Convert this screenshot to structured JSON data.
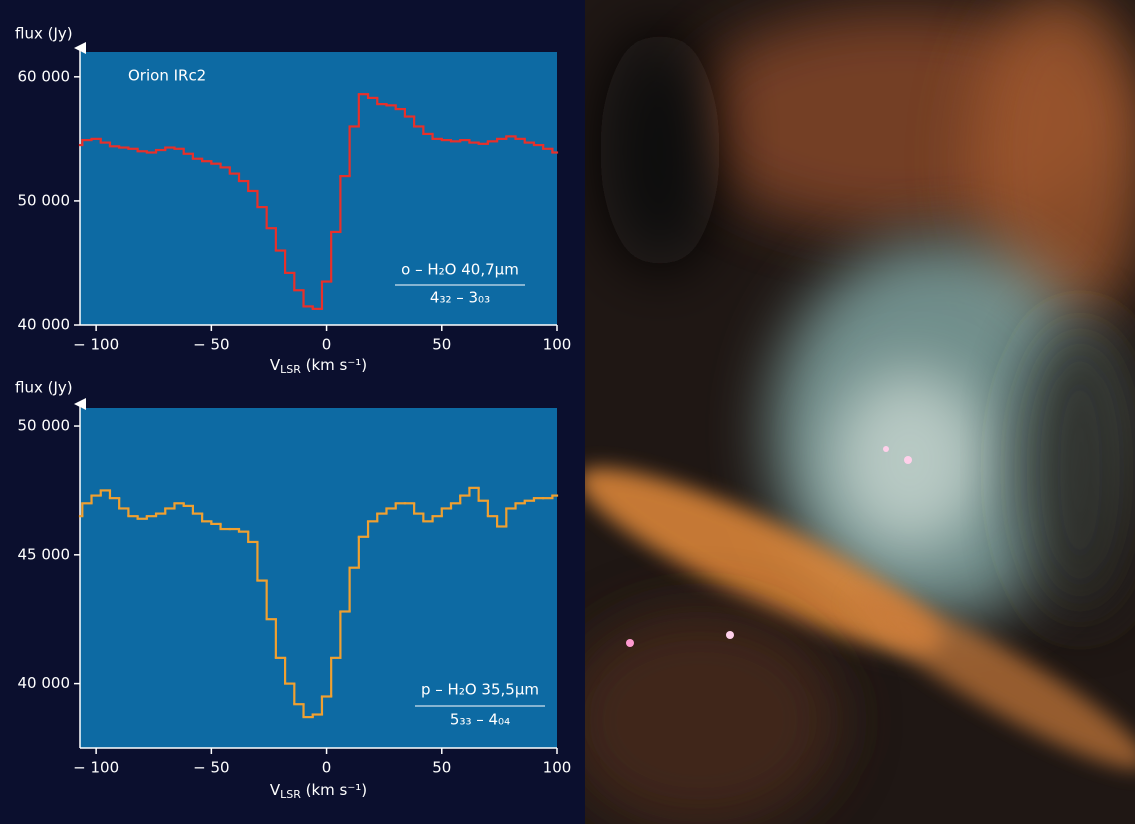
{
  "chart_data": [
    {
      "type": "line",
      "step": true,
      "y_label": "flux (Jy)",
      "x_label": {
        "main": "V",
        "sub": "LSR",
        "rest": " (km s⁻¹)"
      },
      "title": "Orion IRc2",
      "annotation": {
        "line": "o – H₂O 40,7µm",
        "transition": "4₃₂ – 3₀₃"
      },
      "xlim": [
        -107,
        100
      ],
      "xticks": [
        {
          "value": -100,
          "label": "− 100"
        },
        {
          "value": -50,
          "label": "− 50"
        },
        0,
        50,
        100
      ],
      "ylim": [
        40000,
        62000
      ],
      "yticks": [
        {
          "value": 40000,
          "label": "40 000"
        },
        {
          "value": 50000,
          "label": "50 000"
        },
        {
          "value": 60000,
          "label": "60 000"
        }
      ],
      "x": [
        -108,
        -104,
        -100,
        -96,
        -92,
        -88,
        -84,
        -80,
        -76,
        -72,
        -68,
        -64,
        -60,
        -56,
        -52,
        -48,
        -44,
        -40,
        -36,
        -32,
        -28,
        -24,
        -20,
        -16,
        -12,
        -8,
        -4,
        0,
        4,
        8,
        12,
        16,
        20,
        24,
        28,
        32,
        36,
        40,
        44,
        48,
        52,
        56,
        60,
        64,
        68,
        72,
        76,
        80,
        84,
        88,
        92,
        96,
        100
      ],
      "series": [
        {
          "color": "#e8302a",
          "values": [
            54500,
            54900,
            55000,
            54700,
            54400,
            54300,
            54200,
            54000,
            53900,
            54100,
            54300,
            54200,
            53800,
            53400,
            53200,
            53000,
            52700,
            52200,
            51600,
            50800,
            49500,
            47800,
            46000,
            44200,
            42800,
            41500,
            41300,
            43500,
            47500,
            52000,
            56000,
            58600,
            58300,
            57800,
            57700,
            57400,
            56800,
            56000,
            55400,
            55000,
            54900,
            54800,
            54900,
            54700,
            54600,
            54800,
            55000,
            55200,
            55000,
            54700,
            54500,
            54200,
            53900
          ]
        }
      ]
    },
    {
      "type": "line",
      "step": true,
      "y_label": "flux (Jy)",
      "x_label": {
        "main": "V",
        "sub": "LSR",
        "rest": " (km s⁻¹)"
      },
      "annotation": {
        "line": "p – H₂O 35,5µm",
        "transition": "5₃₃ – 4₀₄"
      },
      "xlim": [
        -107,
        100
      ],
      "xticks": [
        {
          "value": -100,
          "label": "− 100"
        },
        {
          "value": -50,
          "label": "− 50"
        },
        0,
        50,
        100
      ],
      "ylim": [
        37500,
        50700
      ],
      "yticks": [
        {
          "value": 40000,
          "label": "40 000"
        },
        {
          "value": 45000,
          "label": "45 000"
        },
        {
          "value": 50000,
          "label": "50 000"
        }
      ],
      "x": [
        -108,
        -104,
        -100,
        -96,
        -92,
        -88,
        -84,
        -80,
        -76,
        -72,
        -68,
        -64,
        -60,
        -56,
        -52,
        -48,
        -44,
        -40,
        -36,
        -32,
        -28,
        -24,
        -20,
        -16,
        -12,
        -8,
        -4,
        0,
        4,
        8,
        12,
        16,
        20,
        24,
        28,
        32,
        36,
        40,
        44,
        48,
        52,
        56,
        60,
        64,
        68,
        72,
        76,
        80,
        84,
        88,
        92,
        96,
        100
      ],
      "series": [
        {
          "color": "#f0a030",
          "values": [
            46500,
            47000,
            47300,
            47500,
            47200,
            46800,
            46500,
            46400,
            46500,
            46600,
            46800,
            47000,
            46900,
            46600,
            46300,
            46200,
            46000,
            46000,
            45900,
            45500,
            44000,
            42500,
            41000,
            40000,
            39200,
            38700,
            38800,
            39500,
            41000,
            42800,
            44500,
            45700,
            46300,
            46600,
            46800,
            47000,
            47000,
            46600,
            46300,
            46500,
            46800,
            47000,
            47300,
            47600,
            47100,
            46500,
            46100,
            46800,
            47000,
            47100,
            47200,
            47200,
            47300
          ]
        }
      ]
    }
  ]
}
